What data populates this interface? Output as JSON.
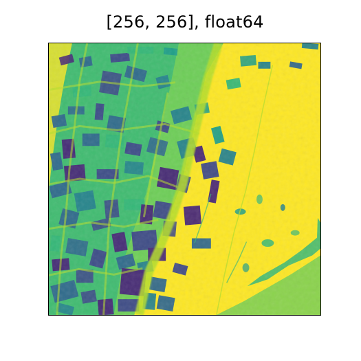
{
  "figure": {
    "title": "[256, 256], float64"
  },
  "image": {
    "colormap": "viridis",
    "dimensions_label": "[256, 256]",
    "dtype": "float64",
    "colors": {
      "high": "#fde725",
      "high_mid": "#b5de2b",
      "mid_green": "#6ece58",
      "teal": "#35b779",
      "blue_green": "#1f9e89",
      "blue": "#26828e",
      "dark_blue": "#31688e",
      "indigo": "#3e4989",
      "dark_purple": "#482878",
      "low": "#440154"
    }
  }
}
